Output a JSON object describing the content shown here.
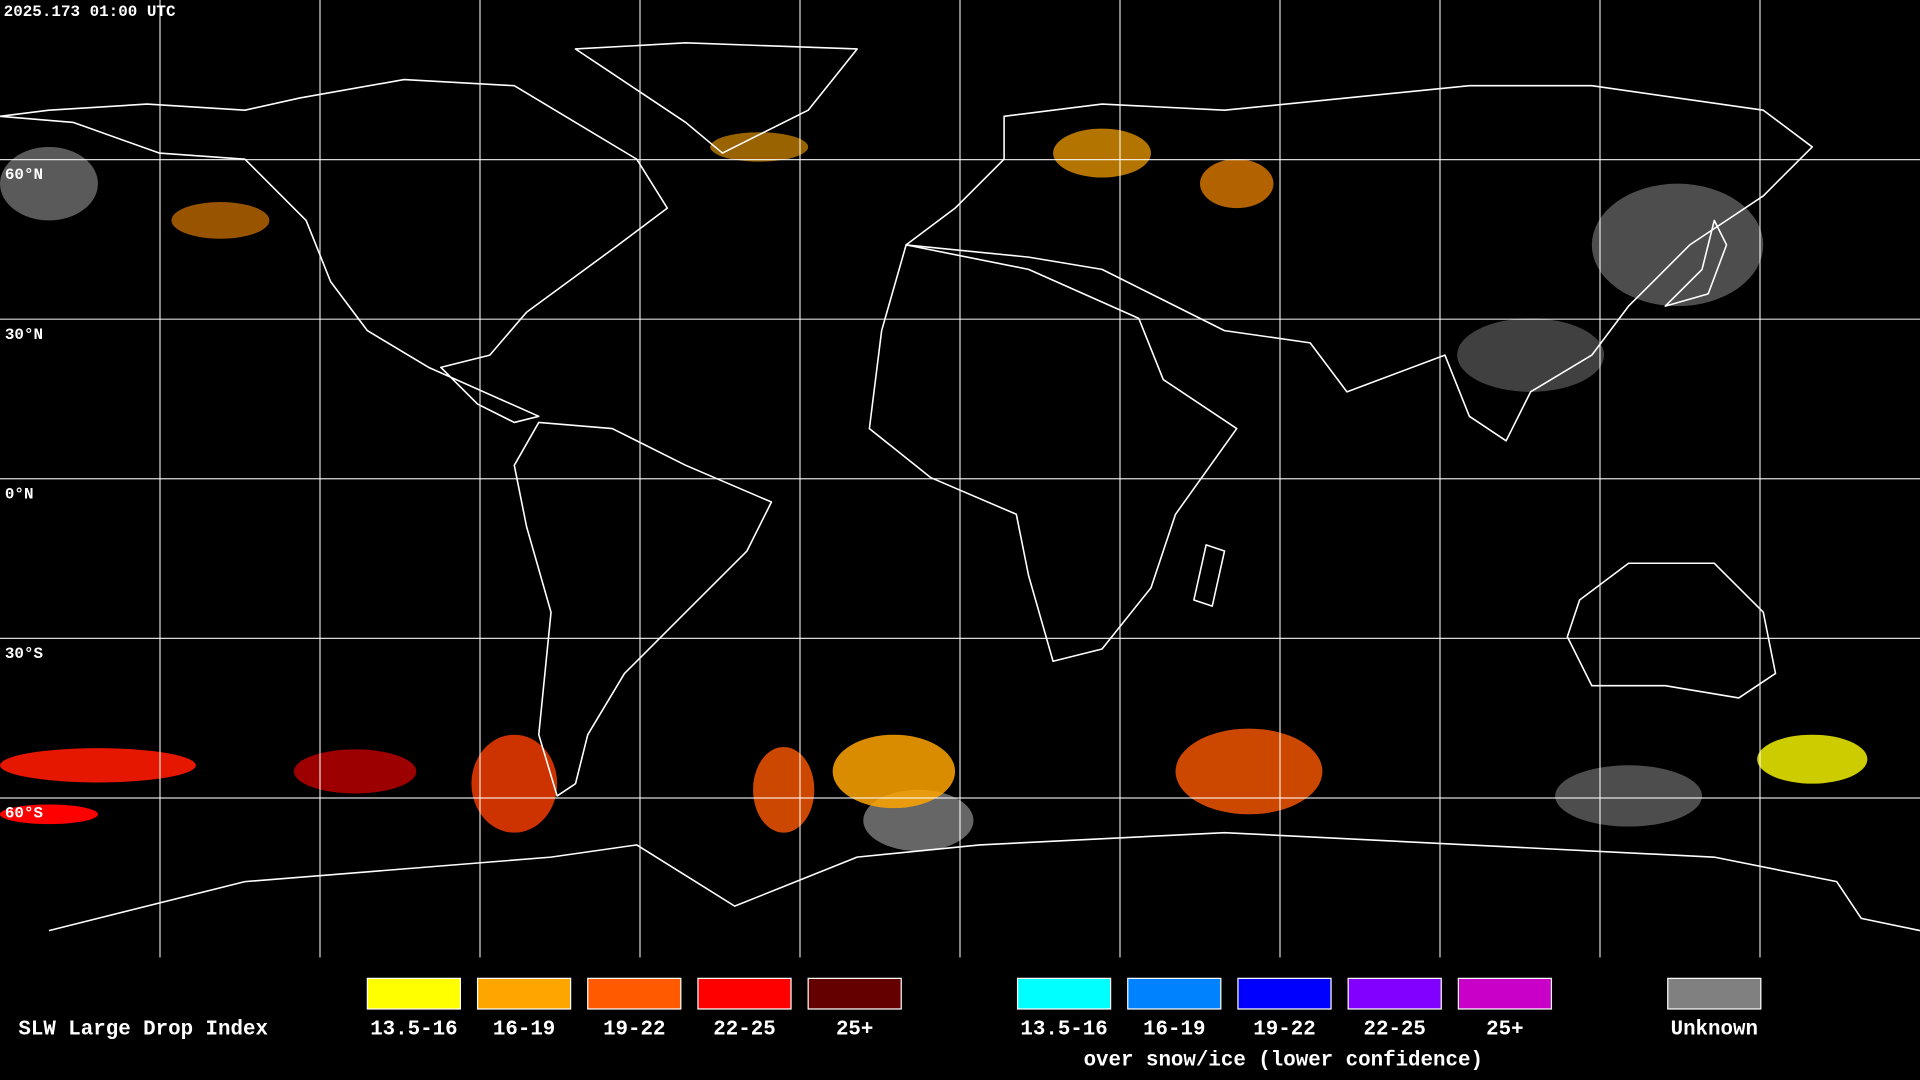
{
  "header": {
    "timestamp": "2025.173 01:00 UTC"
  },
  "map": {
    "latitude_labels": [
      "60°N",
      "30°N",
      "0°N",
      "30°S",
      "60°S"
    ]
  },
  "legend": {
    "title": "SLW Large Drop Index",
    "items": [
      {
        "label": "13.5-16",
        "color": "#ffff00"
      },
      {
        "label": "16-19",
        "color": "#ffa500"
      },
      {
        "label": "19-22",
        "color": "#ff5a00"
      },
      {
        "label": "22-25",
        "color": "#ff0000"
      },
      {
        "label": "25+",
        "color": "#640000"
      }
    ],
    "snow_ice_items": [
      {
        "label": "13.5-16",
        "color": "#00ffff"
      },
      {
        "label": "16-19",
        "color": "#0082ff"
      },
      {
        "label": "19-22",
        "color": "#0000ff"
      },
      {
        "label": "22-25",
        "color": "#8200ff"
      },
      {
        "label": "25+",
        "color": "#c800c8"
      }
    ],
    "snow_ice_note": "over snow/ice (lower confidence)",
    "unknown": {
      "label": "Unknown",
      "color": "#808080"
    }
  }
}
